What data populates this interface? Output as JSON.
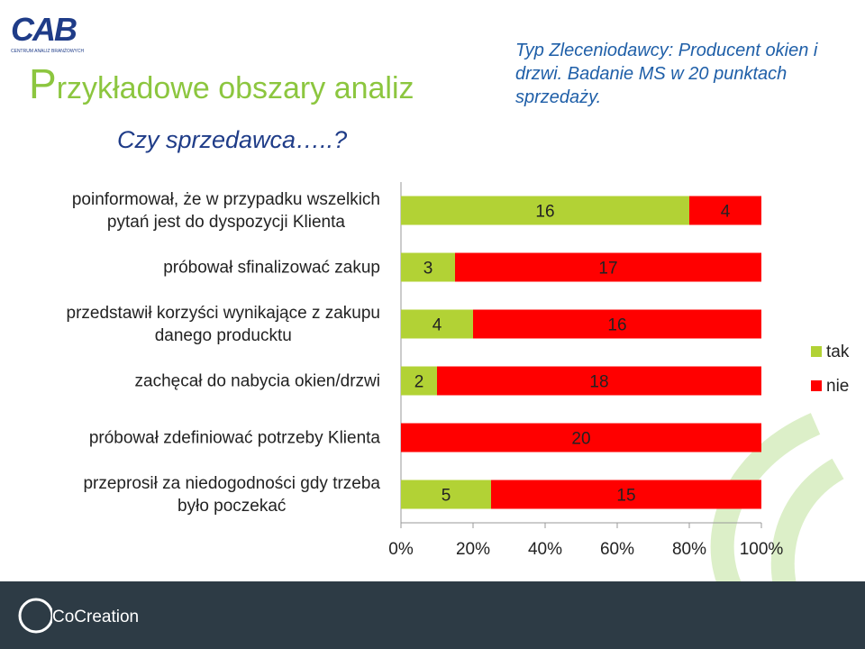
{
  "slide": {
    "logo": "CAB",
    "logo_subtitle": "CENTRUM ANALIZ BRANŻOWYCH",
    "title": "Przykładowe obszary analiz",
    "subtitle": "Czy sprzedawca…..?",
    "note": "Typ Zleceniodawcy: Producent okien i drzwi. Badanie MS w 20 punktach sprzedaży.",
    "footer": "CoCreation"
  },
  "chart_data": {
    "type": "bar",
    "orientation": "horizontal",
    "stacking": "percent",
    "categories": [
      "poinformował, że w przypadku wszelkich\npytań jest do dyspozycji Klienta",
      "próbował sfinalizować zakup",
      "przedstawił korzyści wynikające z zakupu\ndanego producktu",
      "zachęcał do nabycia okien/drzwi",
      "próbował zdefiniować potrzeby Klienta",
      "przeprosił za niedogodności gdy trzeba\nbyło poczekać"
    ],
    "series": [
      {
        "name": "tak",
        "color": "#b2d235",
        "values": [
          16,
          3,
          4,
          2,
          0,
          5
        ]
      },
      {
        "name": "nie",
        "color": "#ff0000",
        "values": [
          4,
          17,
          16,
          18,
          20,
          15
        ]
      }
    ],
    "xlim": [
      0,
      100
    ],
    "xticks": [
      {
        "value": 0,
        "label": "0%"
      },
      {
        "value": 20,
        "label": "20%"
      },
      {
        "value": 40,
        "label": "40%"
      },
      {
        "value": 60,
        "label": "60%"
      },
      {
        "value": 80,
        "label": "80%"
      },
      {
        "value": 100,
        "label": "100%"
      }
    ],
    "legend": "right"
  }
}
